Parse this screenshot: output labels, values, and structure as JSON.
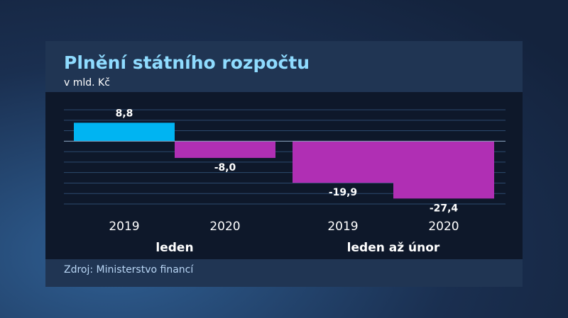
{
  "chart_data": {
    "type": "bar",
    "title": "Plnění státního rozpočtu",
    "subtitle": "v mld. Kč",
    "source": "Zdroj: Ministerstvo financí",
    "groups": [
      {
        "name": "leden",
        "categories": [
          "2019",
          "2020"
        ],
        "values": [
          8.8,
          -8.0
        ],
        "value_labels": [
          "8,8",
          "-8,0"
        ],
        "colors": [
          "#00b4f2",
          "#b02fb4"
        ]
      },
      {
        "name": "leden až únor",
        "categories": [
          "2019",
          "2020"
        ],
        "values": [
          -19.9,
          -27.4
        ],
        "value_labels": [
          "-19,9",
          "-27,4"
        ],
        "colors": [
          "#b02fb4",
          "#b02fb4"
        ]
      }
    ],
    "ylim": [
      -30,
      15
    ],
    "yticks": [
      -30,
      -25,
      -20,
      -15,
      -10,
      -5,
      0,
      5,
      10,
      15
    ],
    "grid": true
  }
}
